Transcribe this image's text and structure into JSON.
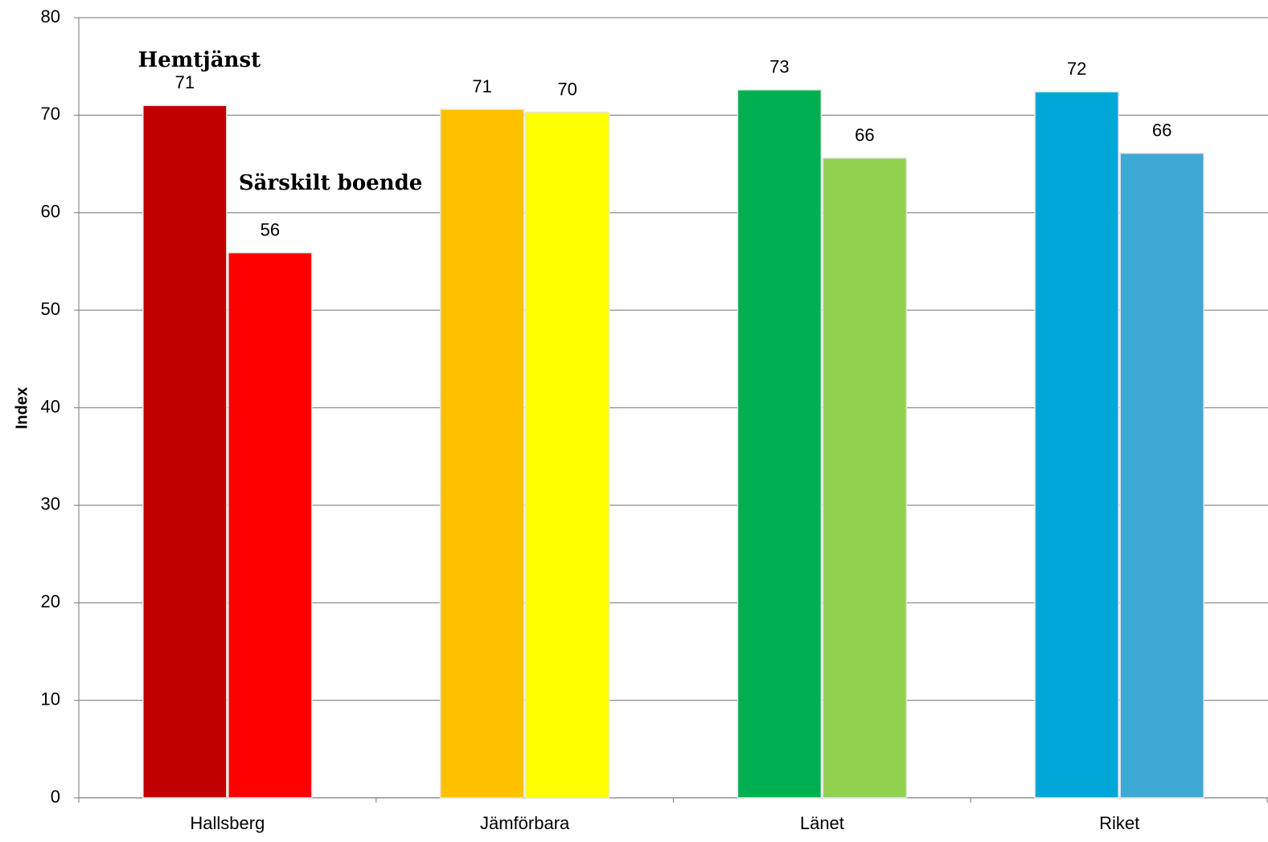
{
  "chart_data": {
    "type": "bar",
    "y_label": "Index",
    "categories": [
      "Hallsberg",
      "Jämförbara",
      "Länet",
      "Riket"
    ],
    "series": [
      {
        "name": "Hemtjänst",
        "colors": [
          "#c00000",
          "#ffc000",
          "#00b050",
          "#00a6d8"
        ],
        "values": [
          71.0,
          70.6,
          72.6,
          72.4
        ],
        "value_labels": [
          "71",
          "71",
          "73",
          "72"
        ]
      },
      {
        "name": "Särskilt boende",
        "colors": [
          "#ff0000",
          "#ffff00",
          "#92d050",
          "#3fa9d6"
        ],
        "values": [
          55.9,
          70.3,
          65.6,
          66.1
        ],
        "value_labels": [
          "56",
          "70",
          "66",
          "66"
        ]
      }
    ],
    "ylim": [
      0,
      80
    ],
    "yticks": [
      0,
      10,
      20,
      30,
      40,
      50,
      60,
      70,
      80
    ],
    "grid": true
  }
}
